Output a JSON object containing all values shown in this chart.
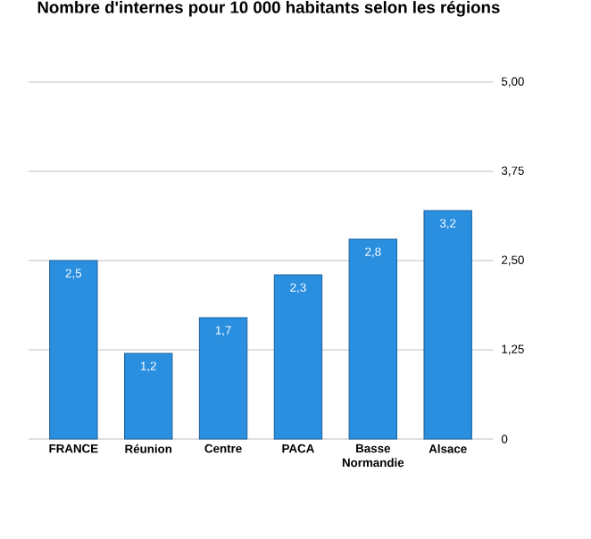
{
  "chart_data": {
    "type": "bar",
    "title": "Nombre d'internes pour 10 000 habitants selon les régions",
    "categories": [
      "FRANCE",
      "Réunion",
      "Centre",
      "PACA",
      "Basse Normandie",
      "Alsace"
    ],
    "values": [
      2.5,
      1.2,
      1.7,
      2.3,
      2.8,
      3.2
    ],
    "value_labels": [
      "2,5",
      "1,2",
      "1,7",
      "2,3",
      "2,8",
      "3,2"
    ],
    "color": "#2b8fe0",
    "ylim": [
      0,
      5
    ],
    "yticks": [
      0,
      {
        "value": 1.25,
        "label": "1,25"
      },
      {
        "value": 2.5,
        "label": "2,50"
      },
      {
        "value": 3.75,
        "label": "3,75"
      },
      {
        "value": 5,
        "label": "5,00"
      }
    ],
    "grid": "y"
  }
}
